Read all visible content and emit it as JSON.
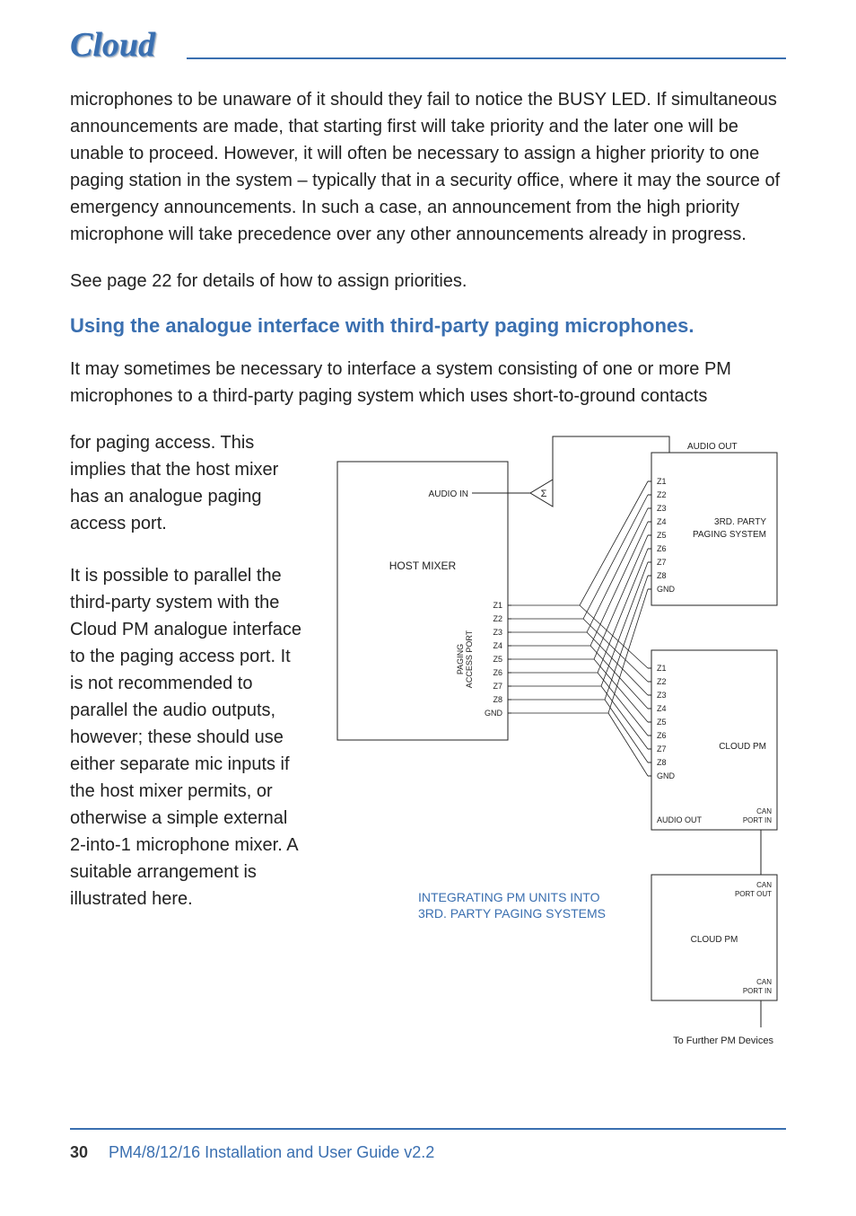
{
  "logo": "Cloud",
  "para1": "microphones to be unaware of it should they fail to notice the BUSY LED. If simultaneous announcements are made, that starting first will take priority and the later one will be unable to proceed. However, it will often be necessary to assign a higher priority to one paging station in the system – typically that in a security office, where it may the source of emergency announcements. In such a case, an announcement from the high priority microphone will take precedence over any other announcements already in progress.",
  "para2": "See page 22 for details of how to assign priorities.",
  "heading": "Using the analogue interface with third-party paging microphones.",
  "para3": "It may sometimes be necessary to interface a system consisting of one or more PM microphones to a third-party paging system which uses short-to-ground contacts",
  "col_p1": "for paging access.  This implies that the host mixer has an analogue paging access port.",
  "col_p2": "It is possible to parallel the third-party system with the Cloud PM analogue interface to the paging access port. It is not recommended to parallel the audio outputs, however; these should use either separate mic inputs if the host mixer permits, or otherwise a simple external 2-into-1 microphone mixer. A suitable arrangement is illustrated here.",
  "diagram": {
    "title1": "INTEGRATING PM UNITS INTO",
    "title2": "3RD. PARTY PAGING SYSTEMS",
    "host_mixer": "HOST MIXER",
    "audio_in": "AUDIO IN",
    "paging_port": "PAGING ACCESS PORT",
    "audio_out": "AUDIO OUT",
    "third_party": "3RD. PARTY PAGING SYSTEM",
    "cloud_pm": "CLOUD PM",
    "can_in": "CAN PORT IN",
    "can_out": "CAN PORT OUT",
    "further": "To Further PM Devices",
    "zones_left": [
      "Z1",
      "Z2",
      "Z3",
      "Z4",
      "Z5",
      "Z6",
      "Z7",
      "Z8",
      "GND"
    ],
    "zones_third": [
      "Z1",
      "Z2",
      "Z3",
      "Z4",
      "Z5",
      "Z6",
      "Z7",
      "Z8",
      "GND"
    ],
    "zones_pm": [
      "Z1",
      "Z2",
      "Z3",
      "Z4",
      "Z5",
      "Z6",
      "Z7",
      "Z8",
      "GND"
    ],
    "audio_out_pm": "AUDIO OUT",
    "colors": {
      "line": "#222222",
      "text": "#222222",
      "title": "#3a6fb0",
      "heading": "#3a6fb0"
    },
    "font_small": 10,
    "font_label": 12,
    "font_title": 14
  },
  "footer": {
    "page": "30",
    "text": "PM4/8/12/16 Installation and User Guide v2.2"
  }
}
